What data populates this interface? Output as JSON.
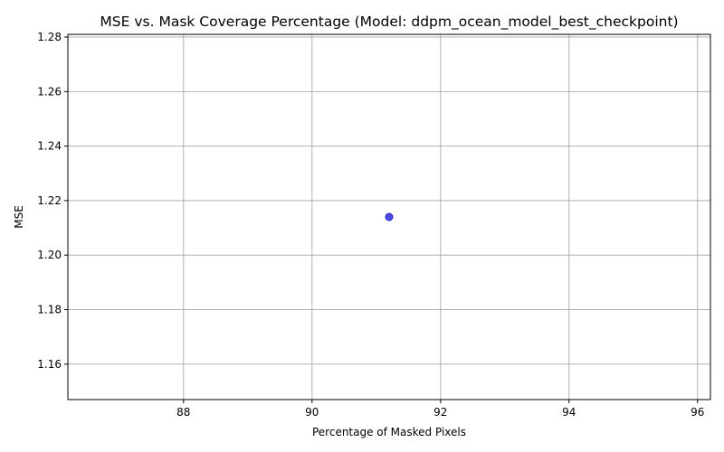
{
  "chart_data": {
    "type": "scatter",
    "title": "MSE vs. Mask Coverage Percentage (Model: ddpm_ocean_model_best_checkpoint)",
    "xlabel": "Percentage of Masked Pixels",
    "ylabel": "MSE",
    "xlim": [
      86.2,
      96.2
    ],
    "ylim": [
      1.147,
      1.281
    ],
    "xticks": [
      88,
      90,
      92,
      94,
      96
    ],
    "xtick_labels": [
      "88",
      "90",
      "92",
      "94",
      "96"
    ],
    "yticks": [
      1.16,
      1.18,
      1.2,
      1.22,
      1.24,
      1.26,
      1.28
    ],
    "ytick_labels": [
      "1.16",
      "1.18",
      "1.20",
      "1.22",
      "1.24",
      "1.26",
      "1.28"
    ],
    "grid": true,
    "points": [
      {
        "x": 91.2,
        "y": 1.214
      }
    ],
    "marker_color": "#1f1fd6"
  }
}
